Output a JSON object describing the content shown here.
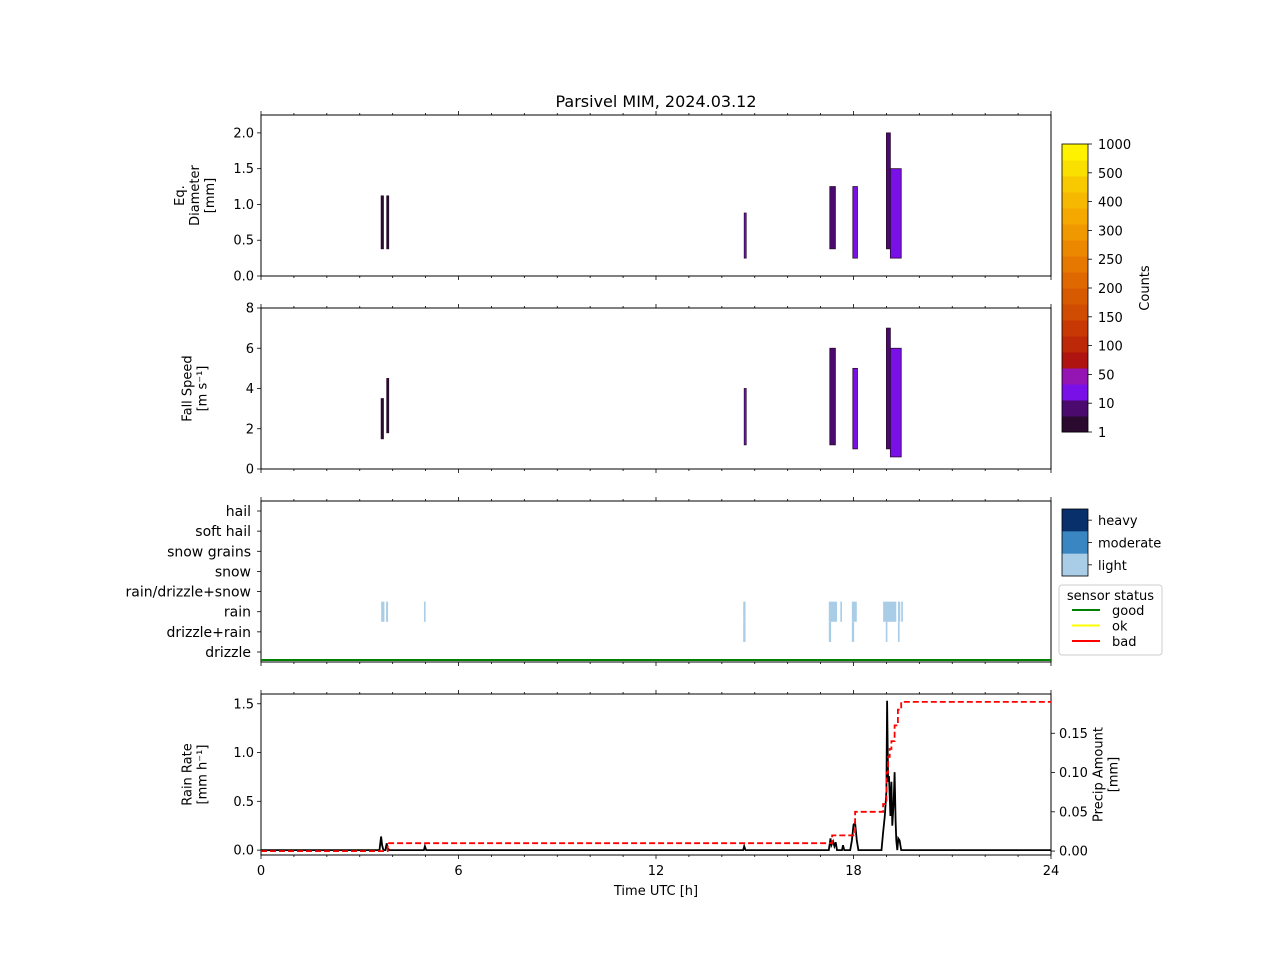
{
  "title": "Parsivel MIM, 2024.03.12",
  "colorbar": {
    "label": "Counts",
    "ticks": [
      "1",
      "10",
      "50",
      "100",
      "150",
      "200",
      "250",
      "300",
      "400",
      "500",
      "1000"
    ],
    "colors": [
      "#2a0a2e",
      "#4a0a6e",
      "#7a10e8",
      "#9414b4",
      "#b01410",
      "#bc2808",
      "#c83804",
      "#d04c02",
      "#d85a00",
      "#e06800",
      "#e67800",
      "#ec8800",
      "#f09800",
      "#f4a800",
      "#f6b800",
      "#f8c800",
      "#fae000",
      "#fff200"
    ]
  },
  "precip_type_legend": {
    "items": [
      {
        "label": "heavy",
        "color": "#08306b"
      },
      {
        "label": "moderate",
        "color": "#3a86c2"
      },
      {
        "label": "light",
        "color": "#a9cde6"
      }
    ]
  },
  "sensor_status_legend": {
    "title": "sensor status",
    "items": [
      {
        "label": "good",
        "color": "#008000"
      },
      {
        "label": "ok",
        "color": "#ffff00"
      },
      {
        "label": "bad",
        "color": "#ff0000"
      }
    ]
  },
  "chart_data": [
    {
      "type": "heatmap",
      "ylabel_lines": [
        "Eq.",
        "Diameter",
        "[mm]"
      ],
      "ylim": [
        0,
        2.25
      ],
      "yticks": [
        "0.0",
        "0.5",
        "1.0",
        "1.5",
        "2.0"
      ],
      "xlim": [
        0,
        24
      ],
      "events": [
        {
          "t0": 3.65,
          "t1": 3.72,
          "ymin": 0.38,
          "ymax": 1.12,
          "level": 0
        },
        {
          "t0": 3.82,
          "t1": 3.88,
          "ymin": 0.38,
          "ymax": 1.12,
          "level": 0
        },
        {
          "t0": 14.68,
          "t1": 14.74,
          "ymin": 0.25,
          "ymax": 0.88,
          "level": 2
        },
        {
          "t0": 17.28,
          "t1": 17.45,
          "ymin": 0.38,
          "ymax": 1.25,
          "level": 1
        },
        {
          "t0": 17.98,
          "t1": 18.12,
          "ymin": 0.25,
          "ymax": 1.25,
          "level": 2
        },
        {
          "t0": 19.0,
          "t1": 19.12,
          "ymin": 0.38,
          "ymax": 2.0,
          "level": 1
        },
        {
          "t0": 19.12,
          "t1": 19.45,
          "ymin": 0.25,
          "ymax": 1.5,
          "level": 2
        }
      ]
    },
    {
      "type": "heatmap",
      "ylabel_lines": [
        "Fall Speed",
        "[m s⁻¹]"
      ],
      "ylim": [
        0,
        8
      ],
      "yticks": [
        "0",
        "2",
        "4",
        "6",
        "8"
      ],
      "xlim": [
        0,
        24
      ],
      "events": [
        {
          "t0": 3.65,
          "t1": 3.72,
          "ymin": 1.5,
          "ymax": 3.5,
          "level": 0
        },
        {
          "t0": 3.82,
          "t1": 3.88,
          "ymin": 1.8,
          "ymax": 4.5,
          "level": 0
        },
        {
          "t0": 14.68,
          "t1": 14.74,
          "ymin": 1.2,
          "ymax": 4.0,
          "level": 2
        },
        {
          "t0": 17.28,
          "t1": 17.45,
          "ymin": 1.2,
          "ymax": 6.0,
          "level": 1
        },
        {
          "t0": 17.98,
          "t1": 18.12,
          "ymin": 1.0,
          "ymax": 5.0,
          "level": 2
        },
        {
          "t0": 19.0,
          "t1": 19.12,
          "ymin": 1.0,
          "ymax": 7.0,
          "level": 1
        },
        {
          "t0": 19.12,
          "t1": 19.45,
          "ymin": 0.6,
          "ymax": 6.0,
          "level": 2
        }
      ]
    },
    {
      "type": "heatmap",
      "categories": [
        "hail",
        "soft hail",
        "snow grains",
        "snow",
        "rain/drizzle+snow",
        "rain",
        "drizzle+rain",
        "drizzle"
      ],
      "xlim": [
        0,
        24
      ],
      "events": [
        {
          "t0": 3.65,
          "t1": 3.75,
          "category": "rain",
          "intensity": "light"
        },
        {
          "t0": 3.8,
          "t1": 3.86,
          "category": "rain",
          "intensity": "light"
        },
        {
          "t0": 4.95,
          "t1": 5.0,
          "category": "rain",
          "intensity": "light"
        },
        {
          "t0": 14.65,
          "t1": 14.72,
          "category": "rain",
          "intensity": "light"
        },
        {
          "t0": 14.65,
          "t1": 14.72,
          "category": "drizzle+rain",
          "intensity": "light"
        },
        {
          "t0": 17.25,
          "t1": 17.5,
          "category": "rain",
          "intensity": "light"
        },
        {
          "t0": 17.25,
          "t1": 17.32,
          "category": "drizzle+rain",
          "intensity": "light"
        },
        {
          "t0": 17.6,
          "t1": 17.65,
          "category": "rain",
          "intensity": "light"
        },
        {
          "t0": 17.95,
          "t1": 18.1,
          "category": "rain",
          "intensity": "light"
        },
        {
          "t0": 17.95,
          "t1": 18.02,
          "category": "drizzle+rain",
          "intensity": "light"
        },
        {
          "t0": 18.9,
          "t1": 19.3,
          "category": "rain",
          "intensity": "light"
        },
        {
          "t0": 18.98,
          "t1": 19.03,
          "category": "drizzle+rain",
          "intensity": "light"
        },
        {
          "t0": 19.35,
          "t1": 19.42,
          "category": "rain",
          "intensity": "light"
        },
        {
          "t0": 19.45,
          "t1": 19.5,
          "category": "rain",
          "intensity": "light"
        },
        {
          "t0": 19.35,
          "t1": 19.4,
          "category": "drizzle+rain",
          "intensity": "light"
        }
      ],
      "sensor_status": [
        {
          "t0": 0,
          "t1": 24,
          "status": "good"
        }
      ]
    },
    {
      "type": "line",
      "xlabel": "Time UTC [h]",
      "xticks": [
        "0",
        "6",
        "12",
        "18",
        "24"
      ],
      "xlim": [
        0,
        24
      ],
      "ylabel_lines": [
        "Rain Rate",
        "[mm h⁻¹]"
      ],
      "ylim": [
        -0.05,
        1.6
      ],
      "yticks": [
        "0.0",
        "0.5",
        "1.0",
        "1.5"
      ],
      "y2label_lines": [
        "Precip Amount",
        "[mm]"
      ],
      "y2lim": [
        -0.005,
        0.2
      ],
      "y2ticks": [
        "0.00",
        "0.05",
        "0.10",
        "0.15"
      ],
      "series": [
        {
          "axis": "left",
          "style": "solid",
          "color": "#000000",
          "x": [
            0,
            3.6,
            3.65,
            3.68,
            3.72,
            3.78,
            3.82,
            3.85,
            3.9,
            4.95,
            4.98,
            5.02,
            14.65,
            14.68,
            14.72,
            17.25,
            17.3,
            17.33,
            17.38,
            17.42,
            17.46,
            17.5,
            17.55,
            17.65,
            17.68,
            17.72,
            17.9,
            17.95,
            18.0,
            18.05,
            18.1,
            18.15,
            18.85,
            18.9,
            18.95,
            19.0,
            19.02,
            19.05,
            19.08,
            19.12,
            19.15,
            19.18,
            19.22,
            19.25,
            19.28,
            19.3,
            19.33,
            19.36,
            19.4,
            19.45,
            19.5,
            19.55,
            24
          ],
          "y": [
            0,
            0,
            0.14,
            0.05,
            0,
            0,
            0.07,
            0.02,
            0,
            0,
            0.04,
            0,
            0,
            0.04,
            0,
            0,
            0.12,
            0.05,
            0.09,
            0.04,
            0.08,
            0,
            0,
            0,
            0.05,
            0,
            0,
            0.1,
            0.26,
            0.28,
            0.1,
            0,
            0,
            0.18,
            0.35,
            0.6,
            1.53,
            0.7,
            0.76,
            0.35,
            0.7,
            0.25,
            0.5,
            0.8,
            0.3,
            0.1,
            0,
            0.12,
            0.1,
            0,
            0,
            0,
            0
          ]
        },
        {
          "axis": "right",
          "style": "dashed",
          "color": "#ff0000",
          "x": [
            0,
            3.7,
            3.85,
            17.25,
            17.35,
            17.95,
            18.05,
            18.8,
            18.9,
            19.0,
            19.05,
            19.1,
            19.15,
            19.25,
            19.35,
            19.45,
            24
          ],
          "y": [
            0,
            0,
            0.01,
            0.01,
            0.02,
            0.02,
            0.05,
            0.05,
            0.06,
            0.1,
            0.12,
            0.13,
            0.14,
            0.16,
            0.18,
            0.19,
            0.19
          ]
        }
      ]
    }
  ]
}
